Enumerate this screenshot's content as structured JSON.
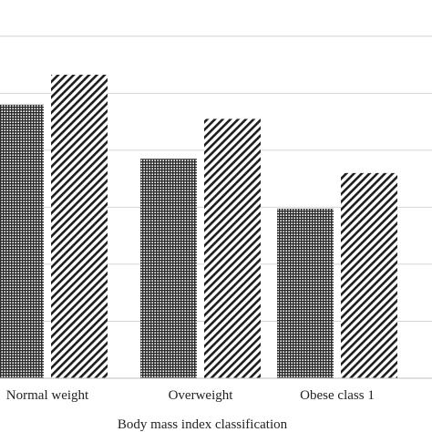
{
  "chart_data": {
    "type": "bar",
    "title": "",
    "xlabel": "Body mass index classification",
    "ylabel": "",
    "categories": [
      "Normal weight",
      "Overweight",
      "Obese class 1"
    ],
    "series": [
      {
        "values": [
          96.0,
          77.0,
          59.5
        ],
        "pattern": "crosshatch"
      },
      {
        "values": [
          106.5,
          91.0,
          72.0
        ],
        "pattern": "diagonal"
      }
    ],
    "ylim": [
      0,
      134
    ],
    "gridline_values": [
      20,
      40,
      60,
      80,
      100,
      120
    ],
    "grid": true,
    "legend": "none",
    "colors": {
      "pattern_ink": "#2b2b2b",
      "gridline": "#d4d4d4",
      "axis": "#bdbdbd",
      "background": "#ffffff"
    }
  }
}
